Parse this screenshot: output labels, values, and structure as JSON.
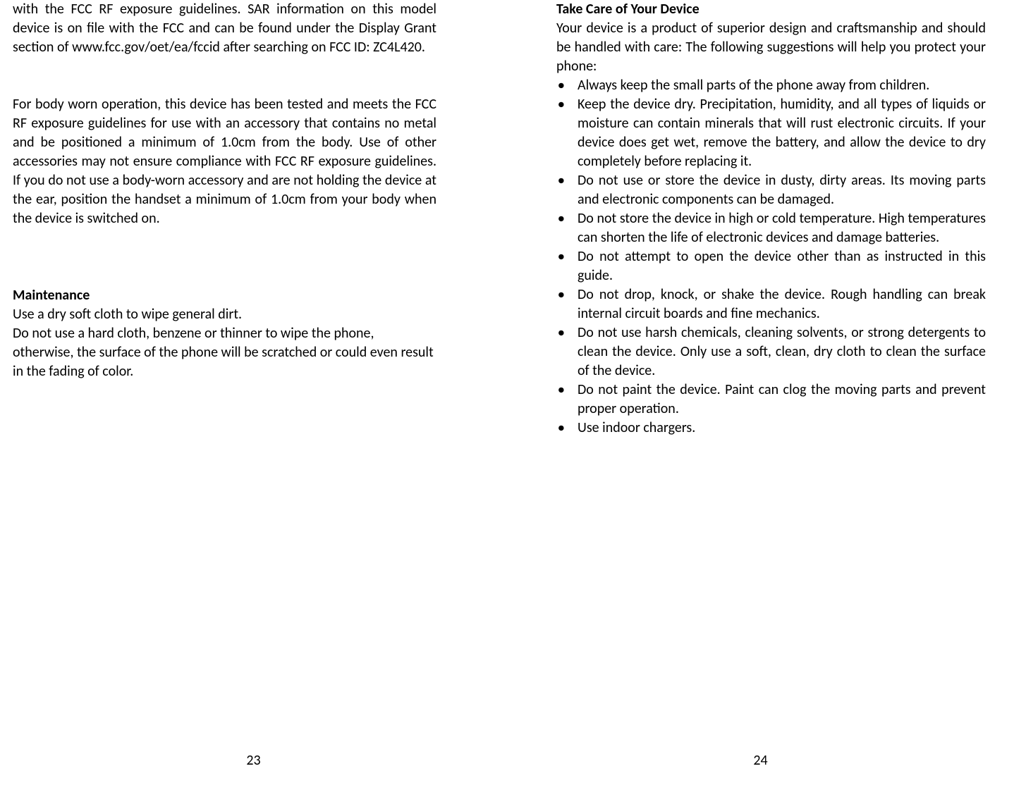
{
  "left": {
    "p1": "with the FCC RF exposure guidelines. SAR information on this model device is on file with the FCC and can be found under the Display Grant section of www.fcc.gov/oet/ea/fccid after searching on FCC ID: ZC4L420.",
    "p2": "For body worn operation, this device has been tested and meets the FCC RF exposure guidelines for use with an accessory that contains no metal and be positioned a minimum of 1.0cm from the body. Use of other accessories may not ensure compliance with FCC RF exposure guidelines. If you do not use a body-worn accessory and are not holding the device at the ear, position the handset a minimum of 1.0cm from your body when the device is switched on.",
    "h1": "Maintenance",
    "p3": "Use a dry soft cloth to wipe general dirt.",
    "p4": "Do not use a hard cloth, benzene or thinner to wipe the phone, otherwise, the surface of the phone will be scratched or could even result in the fading of color.",
    "pageNum": "23"
  },
  "right": {
    "h1": "Take Care of Your Device",
    "p1": "Your device is a product of superior design and craftsmanship and should be handled with care: The following suggestions will help you protect your phone:",
    "bullets": [
      "Always keep the small parts of the phone away from children.",
      "Keep the device dry. Precipitation, humidity, and all types of liquids or moisture can contain minerals that will rust electronic circuits. If your device does get wet, remove the battery, and allow the device to dry completely before replacing it.",
      "Do not use or store the device in dusty, dirty areas. Its moving parts and electronic components can be damaged.",
      "Do not store the device in high or cold temperature. High temperatures can shorten the life of electronic devices and damage batteries.",
      "Do not attempt to open the device other than as instructed in this guide.",
      "Do not drop, knock, or shake the device. Rough handling can break internal circuit boards and fine mechanics.",
      "Do not use harsh chemicals, cleaning solvents, or strong detergents to clean the device. Only use a soft, clean, dry cloth to clean the surface of the device.",
      "Do not paint the device. Paint can clog the moving parts and prevent proper operation.",
      "Use indoor chargers."
    ],
    "pageNum": "24"
  }
}
